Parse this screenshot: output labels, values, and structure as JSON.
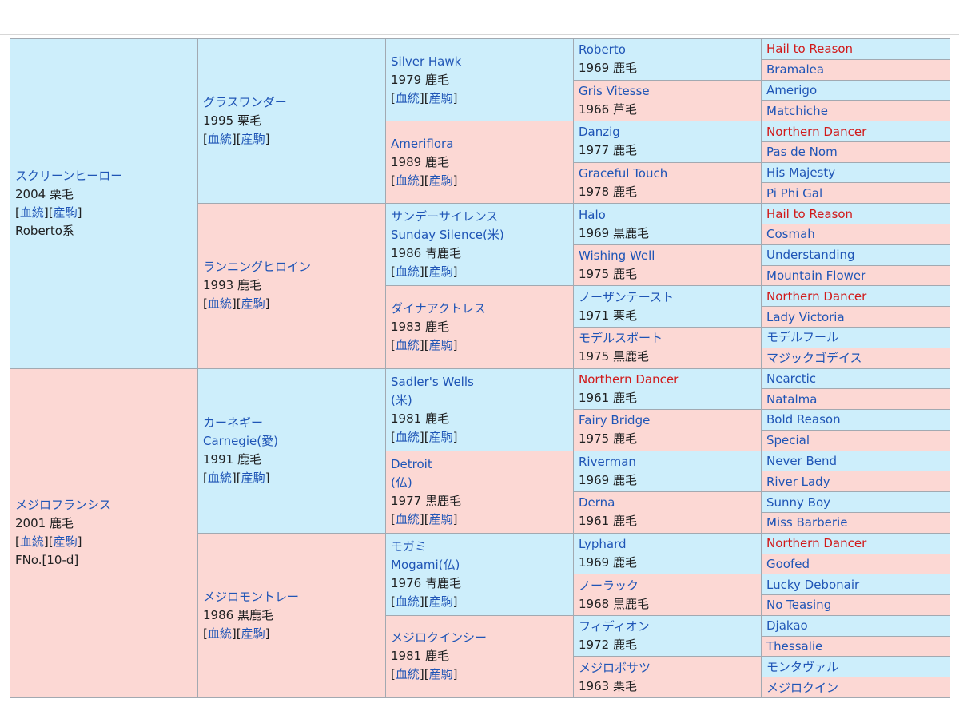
{
  "labels": {
    "bloodline": "血統",
    "offspring": "産駒"
  },
  "gen1": [
    {
      "name": "スクリーンヒーロー",
      "info": "2004 栗毛",
      "extra": "Roberto系"
    },
    {
      "name": "メジロフランシス",
      "info": "2001 鹿毛",
      "extra": "FNo.[10-d]"
    }
  ],
  "gen2": [
    {
      "name": "グラスワンダー",
      "info": "1995 栗毛"
    },
    {
      "name": "ランニングヒロイン",
      "info": "1993 鹿毛"
    },
    {
      "name": "カーネギー",
      "name2": "Carnegie(愛)",
      "info": "1991 鹿毛"
    },
    {
      "name": "メジロモントレー",
      "info": "1986 黒鹿毛"
    }
  ],
  "gen3": [
    {
      "name": "Silver Hawk",
      "info": "1979 鹿毛"
    },
    {
      "name": "Ameriflora",
      "info": "1989 鹿毛"
    },
    {
      "name": "サンデーサイレンス",
      "name2": "Sunday Silence(米)",
      "info": "1986 青鹿毛"
    },
    {
      "name": "ダイナアクトレス",
      "info": "1983 鹿毛"
    },
    {
      "name": "Sadler's Wells",
      "name2": "(米)",
      "info": "1981 鹿毛"
    },
    {
      "name": "Detroit",
      "name2": "(仏)",
      "info": "1977 黒鹿毛"
    },
    {
      "name": "モガミ",
      "name2": "Mogami(仏)",
      "info": "1976 青鹿毛"
    },
    {
      "name": "メジロクインシー",
      "info": "1981 鹿毛"
    }
  ],
  "gen4": [
    {
      "name": "Roberto",
      "info": "1969 鹿毛"
    },
    {
      "name": "Gris Vitesse",
      "info": "1966 芦毛"
    },
    {
      "name": "Danzig",
      "info": "1977 鹿毛"
    },
    {
      "name": "Graceful Touch",
      "info": "1978 鹿毛"
    },
    {
      "name": "Halo",
      "info": "1969 黒鹿毛"
    },
    {
      "name": "Wishing Well",
      "info": "1975 鹿毛"
    },
    {
      "name": "ノーザンテースト",
      "info": "1971 栗毛"
    },
    {
      "name": "モデルスポート",
      "info": "1975 黒鹿毛"
    },
    {
      "name": "Northern Dancer",
      "info": "1961 鹿毛",
      "red": true
    },
    {
      "name": "Fairy Bridge",
      "info": "1975 鹿毛"
    },
    {
      "name": "Riverman",
      "info": "1969 鹿毛"
    },
    {
      "name": "Derna",
      "info": "1961 鹿毛"
    },
    {
      "name": "Lyphard",
      "info": "1969 鹿毛"
    },
    {
      "name": "ノーラック",
      "info": "1968 黒鹿毛"
    },
    {
      "name": "フィディオン",
      "info": "1972 鹿毛"
    },
    {
      "name": "メジロボサツ",
      "info": "1963 栗毛"
    }
  ],
  "gen5": [
    {
      "name": "Hail to Reason",
      "red": true
    },
    {
      "name": "Bramalea"
    },
    {
      "name": "Amerigo"
    },
    {
      "name": "Matchiche"
    },
    {
      "name": "Northern Dancer",
      "red": true
    },
    {
      "name": "Pas de Nom"
    },
    {
      "name": "His Majesty"
    },
    {
      "name": "Pi Phi Gal"
    },
    {
      "name": "Hail to Reason",
      "red": true
    },
    {
      "name": "Cosmah"
    },
    {
      "name": "Understanding"
    },
    {
      "name": "Mountain Flower"
    },
    {
      "name": "Northern Dancer",
      "red": true
    },
    {
      "name": "Lady Victoria"
    },
    {
      "name": "モデルフール"
    },
    {
      "name": "マジックゴデイス"
    },
    {
      "name": "Nearctic"
    },
    {
      "name": "Natalma"
    },
    {
      "name": "Bold Reason"
    },
    {
      "name": "Special"
    },
    {
      "name": "Never Bend"
    },
    {
      "name": "River Lady"
    },
    {
      "name": "Sunny Boy"
    },
    {
      "name": "Miss Barberie"
    },
    {
      "name": "Northern Dancer",
      "red": true
    },
    {
      "name": "Goofed"
    },
    {
      "name": "Lucky Debonair"
    },
    {
      "name": "No Teasing"
    },
    {
      "name": "Djakao"
    },
    {
      "name": "Thessalie"
    },
    {
      "name": "モンタヴァル"
    },
    {
      "name": "メジロクイン"
    }
  ],
  "colors": {
    "sire_bg": "#cdeefb",
    "dam_bg": "#fcd8d4",
    "link": "#1f55b6",
    "highlight": "#d11a1a"
  }
}
